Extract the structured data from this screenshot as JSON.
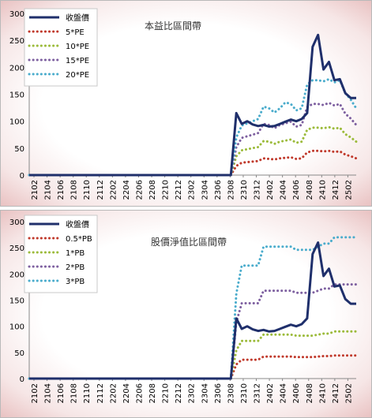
{
  "chart_data": [
    {
      "type": "line",
      "title": "本益比區間帶",
      "ylim": [
        0,
        300
      ],
      "yticks": [
        0,
        50,
        100,
        150,
        200,
        250,
        300
      ],
      "xticklabels": [
        "2102",
        "2104",
        "2106",
        "2108",
        "2110",
        "2112",
        "2202",
        "2204",
        "2206",
        "2208",
        "2210",
        "2212",
        "2302",
        "2304",
        "2306",
        "2308",
        "2310",
        "2312",
        "2402",
        "2404",
        "2406",
        "2408",
        "2410",
        "2412",
        "2502"
      ],
      "legend_position": "top-left",
      "grid": false,
      "series": [
        {
          "name": "收盤價",
          "color": "#1f2f6b",
          "style": "solid",
          "values": [
            0,
            0,
            0,
            0,
            0,
            0,
            0,
            0,
            0,
            0,
            0,
            0,
            0,
            0,
            0,
            0,
            0,
            0,
            0,
            0,
            0,
            0,
            0,
            0,
            0,
            0,
            0,
            0,
            0,
            0,
            0,
            0,
            0,
            0,
            0,
            0,
            0,
            0,
            115,
            95,
            100,
            94,
            91,
            93,
            90,
            91,
            95,
            99,
            103,
            100,
            104,
            115,
            238,
            260,
            196,
            210,
            176,
            178,
            152,
            143,
            143
          ]
        },
        {
          "name": "5*PE",
          "color": "#c0392b",
          "style": "dotted",
          "values": [
            0,
            0,
            0,
            0,
            0,
            0,
            0,
            0,
            0,
            0,
            0,
            0,
            0,
            0,
            0,
            0,
            0,
            0,
            0,
            0,
            0,
            0,
            0,
            0,
            0,
            0,
            0,
            0,
            0,
            0,
            0,
            0,
            0,
            0,
            0,
            0,
            0,
            0,
            17,
            23,
            24,
            25,
            26,
            31,
            30,
            29,
            31,
            32,
            33,
            30,
            31,
            42,
            45,
            45,
            44,
            45,
            43,
            44,
            38,
            35,
            31
          ]
        },
        {
          "name": "10*PE",
          "color": "#9cbb3b",
          "style": "dotted",
          "values": [
            0,
            0,
            0,
            0,
            0,
            0,
            0,
            0,
            0,
            0,
            0,
            0,
            0,
            0,
            0,
            0,
            0,
            0,
            0,
            0,
            0,
            0,
            0,
            0,
            0,
            0,
            0,
            0,
            0,
            0,
            0,
            0,
            0,
            0,
            0,
            0,
            0,
            0,
            35,
            46,
            48,
            50,
            52,
            63,
            62,
            58,
            62,
            64,
            66,
            60,
            62,
            84,
            88,
            88,
            87,
            89,
            86,
            88,
            76,
            70,
            62
          ]
        },
        {
          "name": "15*PE",
          "color": "#7e60a0",
          "style": "dotted",
          "values": [
            0,
            0,
            0,
            0,
            0,
            0,
            0,
            0,
            0,
            0,
            0,
            0,
            0,
            0,
            0,
            0,
            0,
            0,
            0,
            0,
            0,
            0,
            0,
            0,
            0,
            0,
            0,
            0,
            0,
            0,
            0,
            0,
            0,
            0,
            0,
            0,
            0,
            0,
            52,
            69,
            72,
            75,
            78,
            95,
            93,
            87,
            93,
            96,
            99,
            90,
            93,
            126,
            132,
            132,
            130,
            134,
            129,
            132,
            114,
            105,
            93
          ]
        },
        {
          "name": "20*PE",
          "color": "#4aaccc",
          "style": "dotted",
          "values": [
            0,
            0,
            0,
            0,
            0,
            0,
            0,
            0,
            0,
            0,
            0,
            0,
            0,
            0,
            0,
            0,
            0,
            0,
            0,
            0,
            0,
            0,
            0,
            0,
            0,
            0,
            0,
            0,
            0,
            0,
            0,
            0,
            0,
            0,
            0,
            0,
            0,
            0,
            70,
            92,
            96,
            100,
            104,
            127,
            124,
            116,
            124,
            135,
            132,
            120,
            124,
            168,
            176,
            176,
            174,
            178,
            172,
            176,
            152,
            140,
            124
          ]
        }
      ]
    },
    {
      "type": "line",
      "title": "股價淨值比區間帶",
      "ylim": [
        0,
        300
      ],
      "yticks": [
        0,
        50,
        100,
        150,
        200,
        250,
        300
      ],
      "xticklabels": [
        "2102",
        "2104",
        "2106",
        "2108",
        "2110",
        "2112",
        "2202",
        "2204",
        "2206",
        "2208",
        "2210",
        "2212",
        "2302",
        "2304",
        "2306",
        "2308",
        "2310",
        "2312",
        "2402",
        "2404",
        "2406",
        "2408",
        "2410",
        "2412",
        "2502"
      ],
      "legend_position": "top-left",
      "grid": false,
      "series": [
        {
          "name": "收盤價",
          "color": "#1f2f6b",
          "style": "solid",
          "values": [
            0,
            0,
            0,
            0,
            0,
            0,
            0,
            0,
            0,
            0,
            0,
            0,
            0,
            0,
            0,
            0,
            0,
            0,
            0,
            0,
            0,
            0,
            0,
            0,
            0,
            0,
            0,
            0,
            0,
            0,
            0,
            0,
            0,
            0,
            0,
            0,
            0,
            0,
            115,
            95,
            100,
            94,
            91,
            93,
            90,
            91,
            95,
            99,
            103,
            100,
            104,
            115,
            238,
            260,
            196,
            210,
            176,
            178,
            152,
            143,
            143
          ]
        },
        {
          "name": "0.5*PB",
          "color": "#c0392b",
          "style": "dotted",
          "values": [
            0,
            0,
            0,
            0,
            0,
            0,
            0,
            0,
            0,
            0,
            0,
            0,
            0,
            0,
            0,
            0,
            0,
            0,
            0,
            0,
            0,
            0,
            0,
            0,
            0,
            0,
            0,
            0,
            0,
            0,
            0,
            0,
            0,
            0,
            0,
            0,
            0,
            0,
            27,
            36,
            36,
            36,
            36,
            42,
            42,
            42,
            42,
            42,
            42,
            41,
            41,
            41,
            41,
            42,
            43,
            43,
            44,
            44,
            44,
            44,
            44
          ]
        },
        {
          "name": "1*PB",
          "color": "#9cbb3b",
          "style": "dotted",
          "values": [
            0,
            0,
            0,
            0,
            0,
            0,
            0,
            0,
            0,
            0,
            0,
            0,
            0,
            0,
            0,
            0,
            0,
            0,
            0,
            0,
            0,
            0,
            0,
            0,
            0,
            0,
            0,
            0,
            0,
            0,
            0,
            0,
            0,
            0,
            0,
            0,
            0,
            0,
            54,
            72,
            72,
            72,
            72,
            84,
            84,
            84,
            84,
            84,
            84,
            82,
            82,
            82,
            82,
            84,
            86,
            86,
            90,
            90,
            90,
            90,
            90
          ]
        },
        {
          "name": "2*PB",
          "color": "#7e60a0",
          "style": "dotted",
          "values": [
            0,
            0,
            0,
            0,
            0,
            0,
            0,
            0,
            0,
            0,
            0,
            0,
            0,
            0,
            0,
            0,
            0,
            0,
            0,
            0,
            0,
            0,
            0,
            0,
            0,
            0,
            0,
            0,
            0,
            0,
            0,
            0,
            0,
            0,
            0,
            0,
            0,
            0,
            108,
            144,
            144,
            144,
            144,
            168,
            168,
            168,
            168,
            168,
            168,
            164,
            164,
            164,
            164,
            168,
            172,
            172,
            180,
            180,
            180,
            180,
            180
          ]
        },
        {
          "name": "3*PB",
          "color": "#4aaccc",
          "style": "dotted",
          "values": [
            0,
            0,
            0,
            0,
            0,
            0,
            0,
            0,
            0,
            0,
            0,
            0,
            0,
            0,
            0,
            0,
            0,
            0,
            0,
            0,
            0,
            0,
            0,
            0,
            0,
            0,
            0,
            0,
            0,
            0,
            0,
            0,
            0,
            0,
            0,
            0,
            0,
            0,
            162,
            216,
            216,
            216,
            216,
            252,
            252,
            252,
            252,
            252,
            252,
            246,
            246,
            246,
            246,
            252,
            258,
            258,
            270,
            270,
            270,
            270,
            270
          ]
        }
      ]
    }
  ]
}
